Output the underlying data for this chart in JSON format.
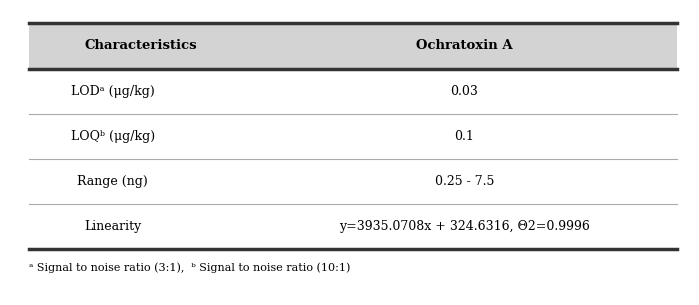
{
  "header_col1": "Characteristics",
  "header_col2": "Ochratoxin A",
  "rows": [
    {
      "col1": "LODᵃ (μg/kg)",
      "col2": "0.03"
    },
    {
      "col1": "LOQᵇ (μg/kg)",
      "col2": "0.1"
    },
    {
      "col1": "Range (ng)",
      "col2": "0.25 - 7.5"
    },
    {
      "col1": "Linearity",
      "col2": "y=3935.0708x + 324.6316, Θ2=0.9996"
    }
  ],
  "footnote": "ᵃ Signal to noise ratio (3:1),  ᵇ Signal to noise ratio (10:1)",
  "header_bg": "#d3d3d3",
  "row_bg": "#ffffff",
  "thick_line_color": "#333333",
  "thin_line_color": "#aaaaaa",
  "font_size": 9,
  "header_font_size": 9.5
}
